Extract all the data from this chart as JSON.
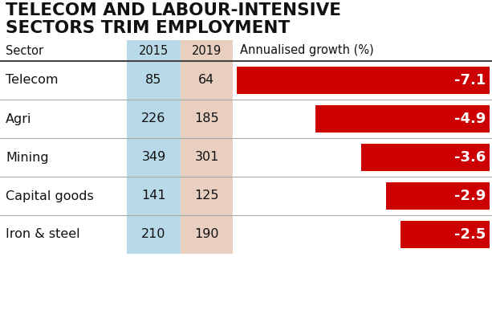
{
  "title_line1": "TELECOM AND LABOUR-INTENSIVE",
  "title_line2": "SECTORS TRIM EMPLOYMENT",
  "col_headers": [
    "Sector",
    "2015",
    "2019",
    "Annualised growth (%)"
  ],
  "rows": [
    {
      "sector": "Telecom",
      "val2015": 85,
      "val2019": 64,
      "growth": -7.1
    },
    {
      "sector": "Agri",
      "val2015": 226,
      "val2019": 185,
      "growth": -4.9
    },
    {
      "sector": "Mining",
      "val2015": 349,
      "val2019": 301,
      "growth": -3.6
    },
    {
      "sector": "Capital goods",
      "val2015": 141,
      "val2019": 125,
      "growth": -2.9
    },
    {
      "sector": "Iron & steel",
      "val2015": 210,
      "val2019": 190,
      "growth": -2.5
    }
  ],
  "bar_color": "#cc0000",
  "bar_max_value": 7.1,
  "col2015_bg": "#b8d9e8",
  "col2019_bg": "#e8cfc0",
  "header_sep_color": "#444444",
  "row_sep_color": "#aaaaaa",
  "background_color": "#ffffff",
  "title_color": "#111111",
  "label_color": "#ffffff",
  "text_color": "#111111",
  "title_fontsize": 15.5,
  "header_fontsize": 10.5,
  "data_fontsize": 11.5,
  "bar_label_fontsize": 13
}
